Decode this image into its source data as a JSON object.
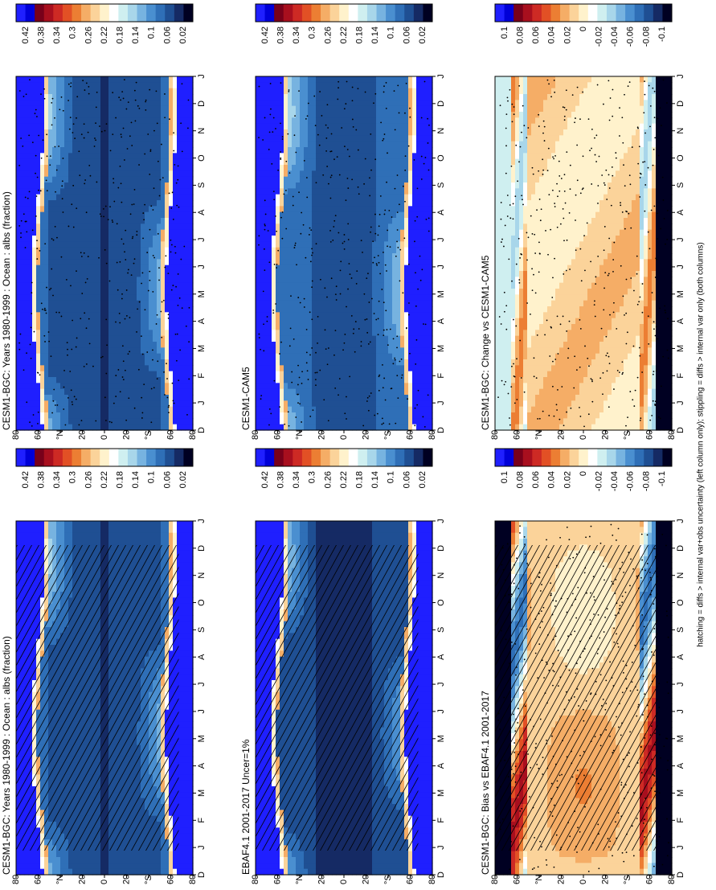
{
  "footnote": "hatching = diffs > internal var+obs uncertainty (left column only); stippling = diffs > internal var only (both columns)",
  "palettes": {
    "abs": [
      "#000022",
      "#152a64",
      "#1f4f93",
      "#2f6fb7",
      "#4a8fd0",
      "#77b3e0",
      "#a8d6ea",
      "#cfeff0",
      "#ffffff",
      "#fff2cc",
      "#fbd39a",
      "#f5ad66",
      "#ec7e33",
      "#e25025",
      "#cd2a24",
      "#a80f1e",
      "#78001a",
      "#0000d8",
      "#1f1fff"
    ],
    "diff": [
      "#000022",
      "#152a64",
      "#1f4f93",
      "#2f6fb7",
      "#4a8fd0",
      "#77b3e0",
      "#a8d6ea",
      "#cfeff0",
      "#ffffff",
      "#fff2cc",
      "#fbd39a",
      "#f5ad66",
      "#ec7e33",
      "#e25025",
      "#cd2a24",
      "#a80f1e",
      "#78001a",
      "#0000d8",
      "#1f1fff"
    ]
  },
  "chart_data": [
    {
      "type": "heatmap",
      "title": "CESM1-BGC: Years 1980-1999 : Ocean : albs (fraction)",
      "months": [
        "D",
        "J",
        "F",
        "M",
        "A",
        "M",
        "J",
        "J",
        "A",
        "S",
        "O",
        "N",
        "D",
        "J"
      ],
      "lat_ticks": [
        "80",
        "60",
        "°N",
        "20",
        "0",
        "20",
        "°S",
        "60",
        "80"
      ],
      "colorbar_labels": [
        "0.42",
        "0.38",
        "0.34",
        "0.3",
        "0.26",
        "0.22",
        "0.18",
        "0.14",
        "0.1",
        "0.06",
        "0.02"
      ],
      "range": [
        0.02,
        0.42
      ],
      "variable": "albs",
      "hatching": true,
      "stippling": false
    },
    {
      "type": "heatmap",
      "title": "CESM1-BGC: Years 1980-1999 : Ocean : albs (fraction)",
      "months": [
        "D",
        "J",
        "F",
        "M",
        "A",
        "M",
        "J",
        "J",
        "A",
        "S",
        "O",
        "N",
        "D",
        "J"
      ],
      "lat_ticks": [
        "80",
        "60",
        "°N",
        "20",
        "0",
        "20",
        "°S",
        "60",
        "80"
      ],
      "colorbar_labels": [
        "0.42",
        "0.38",
        "0.34",
        "0.3",
        "0.26",
        "0.22",
        "0.18",
        "0.14",
        "0.1",
        "0.06",
        "0.02"
      ],
      "range": [
        0.02,
        0.42
      ],
      "variable": "albs",
      "hatching": false,
      "stippling": true
    },
    {
      "type": "heatmap",
      "title": "EBAF4.1 2001-2017 Uncer=1%",
      "months": [
        "D",
        "J",
        "F",
        "M",
        "A",
        "M",
        "J",
        "J",
        "A",
        "S",
        "O",
        "N",
        "D",
        "J"
      ],
      "lat_ticks": [
        "80",
        "60",
        "°N",
        "20",
        "0",
        "20",
        "°S",
        "60",
        "80"
      ],
      "colorbar_labels": [
        "0.42",
        "0.38",
        "0.34",
        "0.3",
        "0.26",
        "0.22",
        "0.18",
        "0.14",
        "0.1",
        "0.06",
        "0.02"
      ],
      "range": [
        0.02,
        0.42
      ],
      "variable": "albs",
      "hatching": true,
      "stippling": false
    },
    {
      "type": "heatmap",
      "title": "CESM1-CAM5",
      "months": [
        "D",
        "J",
        "F",
        "M",
        "A",
        "M",
        "J",
        "J",
        "A",
        "S",
        "O",
        "N",
        "D",
        "J"
      ],
      "lat_ticks": [
        "80",
        "60",
        "°N",
        "20",
        "0",
        "20",
        "°S",
        "60",
        "80"
      ],
      "colorbar_labels": [
        "0.42",
        "0.38",
        "0.34",
        "0.3",
        "0.26",
        "0.22",
        "0.18",
        "0.14",
        "0.1",
        "0.06",
        "0.02"
      ],
      "range": [
        0.02,
        0.42
      ],
      "variable": "albs",
      "hatching": false,
      "stippling": true
    },
    {
      "type": "heatmap",
      "title": "CESM1-BGC: Bias vs EBAF4.1 2001-2017",
      "months": [
        "D",
        "J",
        "F",
        "M",
        "A",
        "M",
        "J",
        "J",
        "A",
        "S",
        "O",
        "N",
        "D",
        "J"
      ],
      "lat_ticks": [
        "80",
        "60",
        "°N",
        "20",
        "0",
        "20",
        "°S",
        "60",
        "80"
      ],
      "colorbar_labels": [
        "0.1",
        "0.08",
        "0.06",
        "0.04",
        "0.02",
        "0",
        "-0.02",
        "-0.04",
        "-0.06",
        "-0.08",
        "-0.1"
      ],
      "range": [
        -0.1,
        0.1
      ],
      "variable": "diff",
      "hatching": true,
      "stippling": true
    },
    {
      "type": "heatmap",
      "title": "CESM1-BGC: Change vs CESM1-CAM5",
      "months": [
        "D",
        "J",
        "F",
        "M",
        "A",
        "M",
        "J",
        "J",
        "A",
        "S",
        "O",
        "N",
        "D",
        "J"
      ],
      "lat_ticks": [
        "80",
        "60",
        "°N",
        "20",
        "0",
        "20",
        "°S",
        "60",
        "80"
      ],
      "colorbar_labels": [
        "0.1",
        "0.08",
        "0.06",
        "0.04",
        "0.02",
        "0",
        "-0.02",
        "-0.04",
        "-0.06",
        "-0.08",
        "-0.1"
      ],
      "range": [
        -0.1,
        0.1
      ],
      "variable": "diff",
      "hatching": false,
      "stippling": true
    }
  ]
}
